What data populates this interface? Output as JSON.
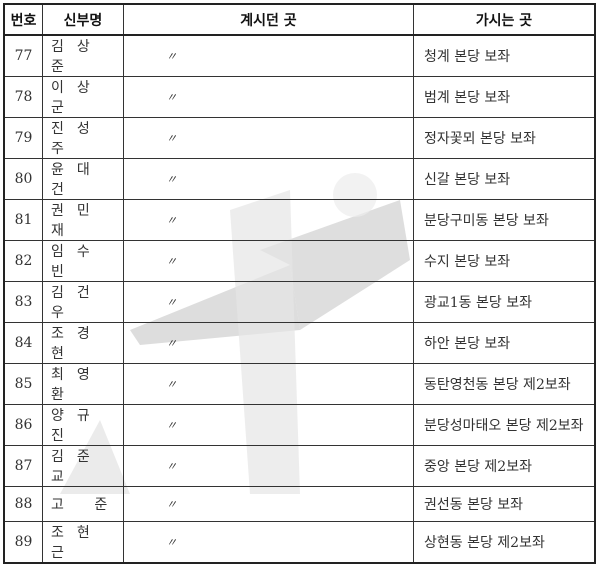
{
  "headers": {
    "no": "번호",
    "name": "신부명",
    "prev": "계시던 곳",
    "next": "가시는 곳"
  },
  "rows": [
    {
      "no": "77",
      "name": "김상준",
      "prev": "〃",
      "next": "청계 본당 보좌"
    },
    {
      "no": "78",
      "name": "이상군",
      "prev": "〃",
      "next": "범계 본당 보좌"
    },
    {
      "no": "79",
      "name": "진성주",
      "prev": "〃",
      "next": "정자꽃뫼 본당 보좌"
    },
    {
      "no": "80",
      "name": "윤대건",
      "prev": "〃",
      "next": "신갈 본당 보좌"
    },
    {
      "no": "81",
      "name": "권민재",
      "prev": "〃",
      "next": "분당구미동 본당 보좌"
    },
    {
      "no": "82",
      "name": "임수빈",
      "prev": "〃",
      "next": "수지 본당 보좌"
    },
    {
      "no": "83",
      "name": "김건우",
      "prev": "〃",
      "next": "광교1동 본당 보좌"
    },
    {
      "no": "84",
      "name": "조경현",
      "prev": "〃",
      "next": "하안 본당 보좌"
    },
    {
      "no": "85",
      "name": "최영환",
      "prev": "〃",
      "next": "동탄영천동 본당 제2보좌"
    },
    {
      "no": "86",
      "name": "양규진",
      "prev": "〃",
      "next": "분당성마태오 본당 제2보좌"
    },
    {
      "no": "87",
      "name": "김준교",
      "prev": "〃",
      "next": "중앙 본당 제2보좌"
    },
    {
      "no": "88",
      "name": "고 준",
      "prev": "〃",
      "next": "권선동 본당 보좌"
    },
    {
      "no": "89",
      "name": "조현근",
      "prev": "〃",
      "next": "상현동 본당 제2보좌"
    }
  ]
}
